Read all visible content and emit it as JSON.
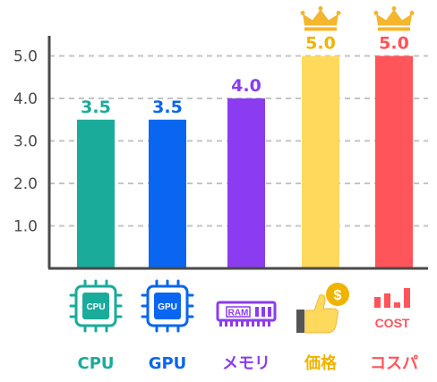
{
  "chart_data": {
    "type": "bar",
    "categories": [
      "CPU",
      "GPU",
      "メモリ",
      "価格",
      "コスパ"
    ],
    "values": [
      3.5,
      3.5,
      4.0,
      5.0,
      5.0
    ],
    "value_labels": [
      "3.5",
      "3.5",
      "4.0",
      "5.0",
      "5.0"
    ],
    "y_ticks": [
      "1.0",
      "2.0",
      "3.0",
      "4.0",
      "5.0"
    ],
    "ylim": [
      0,
      5.5
    ],
    "grid": true,
    "colors": [
      "#1aab9b",
      "#0a66f0",
      "#8b3cf0",
      "#ffd95c",
      "#ff5459"
    ],
    "label_colors": [
      "#1aab9b",
      "#0a66f0",
      "#8b3cf0",
      "#f0b400",
      "#ff5459"
    ],
    "icons": [
      "cpu-icon",
      "gpu-icon",
      "ram-icon",
      "price-icon",
      "cost-icon"
    ],
    "icon_texts": {
      "cpu": "CPU",
      "gpu": "GPU",
      "ram": "RAM",
      "price": "$",
      "cost": "COST"
    },
    "crowned": [
      false,
      false,
      false,
      true,
      true
    ],
    "crown_color": "#f3b62c"
  }
}
